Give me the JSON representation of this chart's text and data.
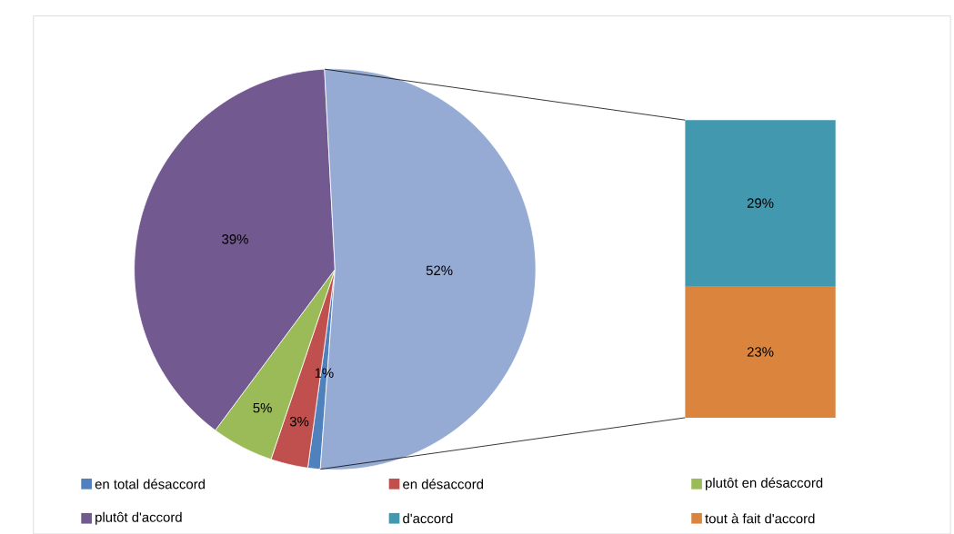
{
  "chart_data": [
    {
      "type": "pie",
      "categories": [
        "en total désaccord",
        "en désaccord",
        "plutôt en désaccord",
        "plutôt d'accord",
        null
      ],
      "values": [
        1,
        3,
        5,
        39,
        52
      ],
      "colors": [
        "#4f81bd",
        "#c0504d",
        "#9bbb59",
        "#725990",
        "#95abd3"
      ],
      "value_labels": [
        "1%",
        "3%",
        "5%",
        "39%",
        "52%"
      ],
      "legend": "bottom"
    },
    {
      "type": "bar",
      "stacked": true,
      "categories": [
        null
      ],
      "series": [
        {
          "name": "tout à fait d'accord",
          "color": "#db843d",
          "values": [
            23
          ],
          "value_labels": [
            "23%"
          ]
        },
        {
          "name": "d'accord",
          "color": "#4198af",
          "values": [
            29
          ],
          "value_labels": [
            "29%"
          ]
        }
      ],
      "legend": "bottom"
    }
  ]
}
